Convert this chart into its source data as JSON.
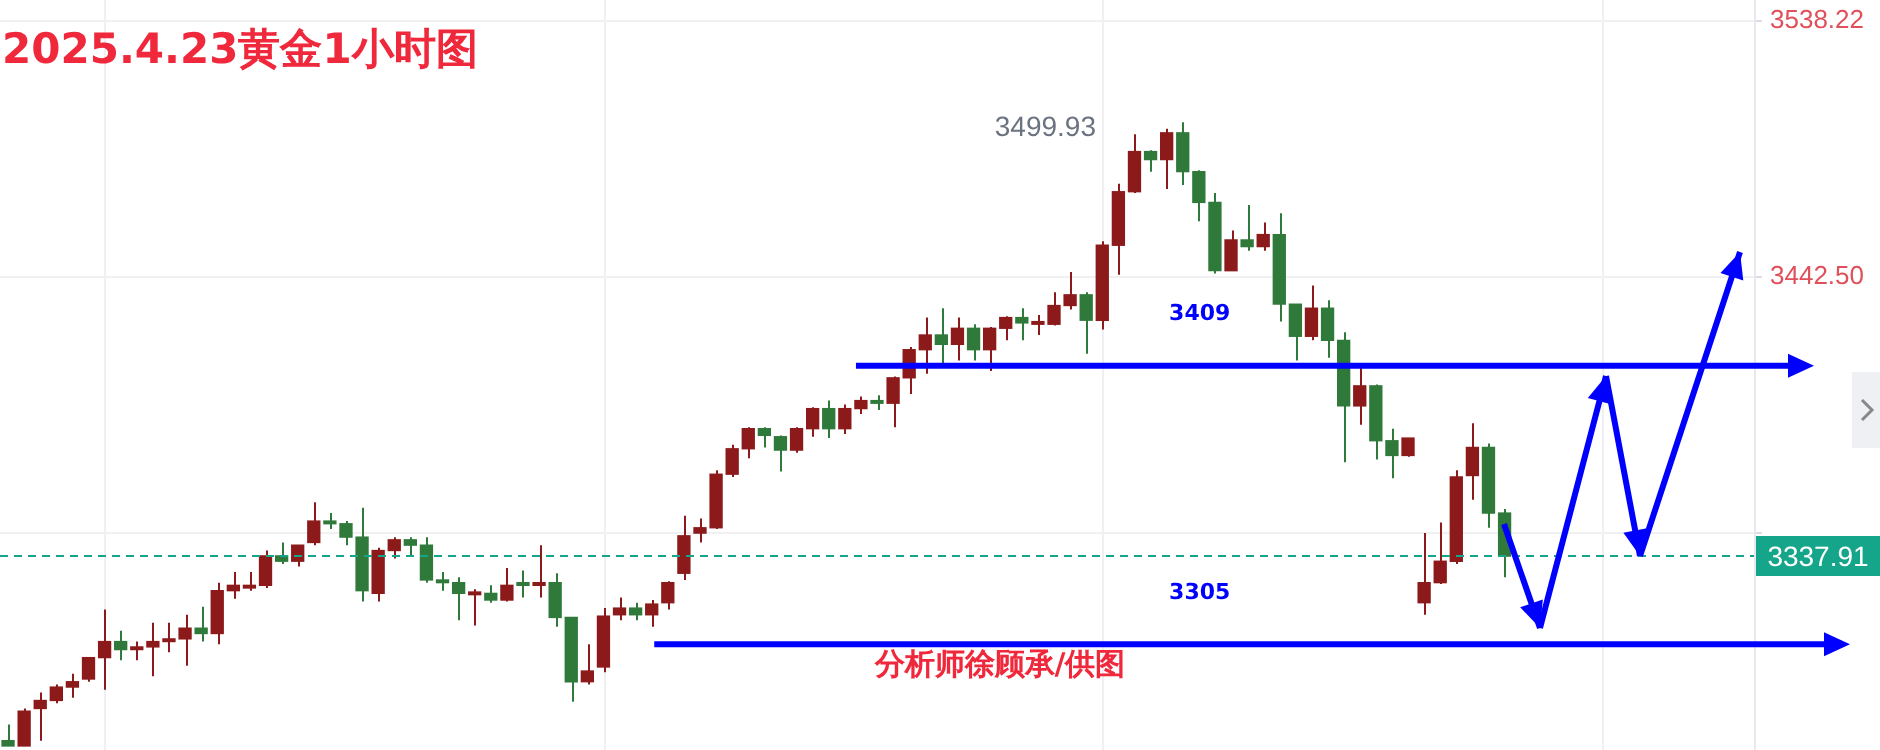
{
  "chart_data": {
    "type": "candlestick",
    "title": "2025.4.23黄金1小时图",
    "categories": [
      null,
      null,
      null,
      null,
      null,
      null,
      null,
      null,
      null,
      null,
      null,
      null,
      null,
      null,
      null,
      null,
      null,
      null,
      null,
      null,
      null,
      null,
      null,
      null,
      null,
      null,
      null,
      null,
      null,
      null,
      null,
      null,
      null,
      null,
      null,
      null,
      null,
      null,
      null,
      null,
      null,
      null,
      null,
      null,
      null,
      null,
      null,
      null,
      null,
      null,
      null,
      null,
      null,
      null,
      null,
      null,
      null,
      null,
      null,
      null,
      null,
      null,
      null,
      null,
      null,
      null,
      null,
      null,
      null,
      null,
      null,
      null,
      null,
      null,
      null,
      null,
      null,
      null,
      null,
      null,
      null,
      null,
      null,
      null,
      null,
      null,
      null,
      null,
      null,
      null,
      null,
      null,
      null,
      null,
      null,
      null,
      null,
      null,
      null,
      null,
      null,
      null,
      null,
      null,
      null,
      null,
      null,
      null,
      null
    ],
    "ohlc": [
      [
        3269,
        3275,
        3267,
        3267
      ],
      [
        3267,
        3281,
        3267,
        3280
      ],
      [
        3281,
        3287,
        3269,
        3284
      ],
      [
        3284,
        3290,
        3283,
        3289
      ],
      [
        3289,
        3294,
        3285,
        3291
      ],
      [
        3292,
        3300,
        3291,
        3300
      ],
      [
        3300,
        3318,
        3288,
        3306
      ],
      [
        3306,
        3310,
        3299,
        3303
      ],
      [
        3303,
        3306,
        3299,
        3304
      ],
      [
        3304,
        3313,
        3293,
        3306
      ],
      [
        3306,
        3313,
        3302,
        3307
      ],
      [
        3307,
        3316,
        3297,
        3311
      ],
      [
        3311,
        3319,
        3306,
        3309
      ],
      [
        3309,
        3328,
        3305,
        3325
      ],
      [
        3325,
        3332,
        3322,
        3327
      ],
      [
        3326,
        3332,
        3325,
        3327
      ],
      [
        3327,
        3340,
        3326,
        3338
      ],
      [
        3338,
        3343,
        3335,
        3336
      ],
      [
        3336,
        3342,
        3334,
        3342
      ],
      [
        3343,
        3358,
        3342,
        3351
      ],
      [
        3351,
        3354,
        3348,
        3350
      ],
      [
        3350,
        3351,
        3342,
        3345
      ],
      [
        3345,
        3356,
        3321,
        3325
      ],
      [
        3324,
        3341,
        3321,
        3340
      ],
      [
        3340,
        3345,
        3337,
        3344
      ],
      [
        3344,
        3345,
        3338,
        3342
      ],
      [
        3342,
        3345,
        3328,
        3329
      ],
      [
        3329,
        3332,
        3325,
        3328
      ],
      [
        3328,
        3330,
        3314,
        3324
      ],
      [
        3323.5,
        3325.5,
        3312,
        3324.5
      ],
      [
        3324,
        3327,
        3320.5,
        3321.5
      ],
      [
        3321.5,
        3333.5,
        3321,
        3327
      ],
      [
        3328,
        3332.5,
        3322.5,
        3327
      ],
      [
        3327,
        3342,
        3322.5,
        3328
      ],
      [
        3328,
        3331.5,
        3311.5,
        3315
      ],
      [
        3315,
        3315,
        3283.5,
        3291
      ],
      [
        3291,
        3305,
        3290,
        3295
      ],
      [
        3296.5,
        3318.5,
        3294.5,
        3315.5
      ],
      [
        3316,
        3322.5,
        3314,
        3318.5
      ],
      [
        3318.5,
        3320.5,
        3314,
        3316
      ],
      [
        3316,
        3321.5,
        3311.5,
        3320
      ],
      [
        3320.5,
        3328.5,
        3318,
        3328
      ],
      [
        3331.5,
        3353,
        3329,
        3345.5
      ],
      [
        3346.5,
        3352,
        3343,
        3348.5
      ],
      [
        3348.5,
        3370,
        3348,
        3368.5
      ],
      [
        3368.5,
        3379.5,
        3367.5,
        3378
      ],
      [
        3378,
        3386,
        3374.5,
        3385.5
      ],
      [
        3385.5,
        3386,
        3378.5,
        3383
      ],
      [
        3382.5,
        3383,
        3369.5,
        3377.5
      ],
      [
        3377.5,
        3386,
        3376.5,
        3385.5
      ],
      [
        3385.5,
        3393.5,
        3382.5,
        3393
      ],
      [
        3393,
        3396,
        3382,
        3385.5
      ],
      [
        3385.5,
        3394.5,
        3383.5,
        3393
      ],
      [
        3393,
        3397.5,
        3391,
        3396
      ],
      [
        3396,
        3398,
        3392.5,
        3395
      ],
      [
        3395,
        3405,
        3386,
        3404.5
      ],
      [
        3404.5,
        3416,
        3398.5,
        3415
      ],
      [
        3415,
        3427,
        3406,
        3420.5
      ],
      [
        3420.5,
        3430.5,
        3410,
        3417
      ],
      [
        3417,
        3427,
        3411,
        3423
      ],
      [
        3423,
        3424.5,
        3411,
        3415
      ],
      [
        3415,
        3423.5,
        3407,
        3423
      ],
      [
        3423,
        3427.5,
        3418.5,
        3427
      ],
      [
        3427,
        3430.5,
        3418.5,
        3425
      ],
      [
        3424.5,
        3428,
        3420.5,
        3425.5
      ],
      [
        3424.5,
        3436.5,
        3424,
        3431.5
      ],
      [
        3431.5,
        3444,
        3430,
        3435.5
      ],
      [
        3435.5,
        3436.5,
        3413.5,
        3426
      ],
      [
        3426,
        3455.5,
        3422.5,
        3454
      ],
      [
        3454,
        3477,
        3443,
        3474
      ],
      [
        3474,
        3495.5,
        3473.5,
        3489
      ],
      [
        3489,
        3489.5,
        3481.5,
        3486
      ],
      [
        3486,
        3497.5,
        3475,
        3496
      ],
      [
        3496,
        3499.93,
        3476.5,
        3481.5
      ],
      [
        3481.5,
        3482,
        3463,
        3470
      ],
      [
        3470,
        3473.5,
        3443.5,
        3444.5
      ],
      [
        3444.5,
        3459.5,
        3444.5,
        3456
      ],
      [
        3456,
        3469,
        3452,
        3453.5
      ],
      [
        3453.5,
        3462.5,
        3452,
        3458
      ],
      [
        3458,
        3466,
        3425.5,
        3432
      ],
      [
        3432,
        3432,
        3411,
        3420
      ],
      [
        3420,
        3439,
        3418.5,
        3430.5
      ],
      [
        3430.5,
        3433.5,
        3412,
        3418.5
      ],
      [
        3418.5,
        3421.5,
        3373,
        3394
      ],
      [
        3394,
        3410,
        3387,
        3401.5
      ],
      [
        3401.5,
        3402,
        3374,
        3381
      ],
      [
        3381,
        3385.5,
        3367,
        3375.5
      ],
      [
        3375.5,
        3382,
        3375,
        3382
      ],
      [
        3320.5,
        3346.5,
        3316,
        3328
      ],
      [
        3328,
        3350.5,
        3327.5,
        3336
      ],
      [
        3336,
        3370,
        3335,
        3367.5
      ],
      [
        3368,
        3387.5,
        3359,
        3378.5
      ],
      [
        3378.5,
        3380,
        3348.5,
        3354
      ],
      [
        3354,
        3355.5,
        3330,
        3337.91
      ],
      null,
      null,
      null,
      null,
      null,
      null,
      null,
      null,
      null,
      null,
      null,
      null,
      null,
      null,
      null
    ],
    "ylim": [
      3265.5,
      3545.6
    ],
    "yticks": [
      3538.22,
      {
        "value": 3442.5,
        "label": "3442.50"
      },
      {
        "value": 3346.79,
        "label": null
      }
    ],
    "grid": "y",
    "tick_labels": "y",
    "ref_lines": [
      {
        "axis": "y",
        "value": 3409,
        "label": "3409",
        "color": "#0000ff"
      },
      {
        "axis": "y",
        "value": 3305,
        "label": "3305",
        "color": "#0000ff"
      },
      {
        "axis": "y",
        "value": 3337.91,
        "label": "3337.91",
        "color": "#14a58b",
        "line_style": "dashed"
      }
    ],
    "annotations": [
      "3499.93",
      "分析师徐顾承/供图"
    ]
  }
}
